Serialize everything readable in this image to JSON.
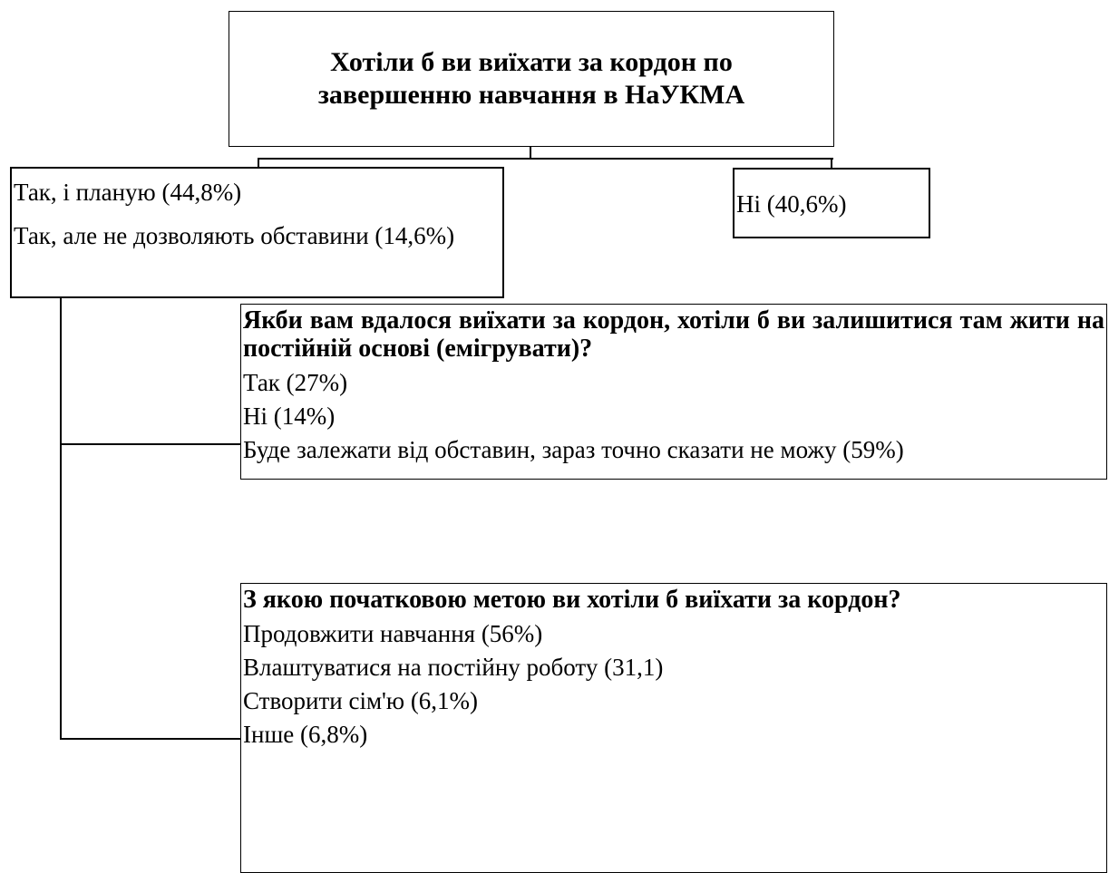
{
  "root": {
    "title": "Хотіли б ви виїхати за кордон по завершенню навчання в НаУКМА"
  },
  "branches": [
    {
      "options": [
        "Так, і планую (44,8%)",
        "Так, але не дозволяють обставини (14,6%)"
      ]
    },
    {
      "options": [
        "Ні (40,6%)"
      ]
    }
  ],
  "questions": [
    {
      "title": "Якби вам вдалося виїхати за кордон, хотіли б ви залишитися там жити на постійній основі (емігрувати)?",
      "options": [
        "Так (27%)",
        "Ні (14%)",
        "Буде залежати від обставин, зараз точно сказати не можу (59%)"
      ]
    },
    {
      "title": "З якою початковою метою ви хотіли б виїхати за кордон?",
      "options": [
        "Продовжити навчання (56%)",
        "Влаштуватися на постійну роботу (31,1)",
        "Створити сім'ю (6,1%)",
        "Інше (6,8%)"
      ]
    }
  ]
}
